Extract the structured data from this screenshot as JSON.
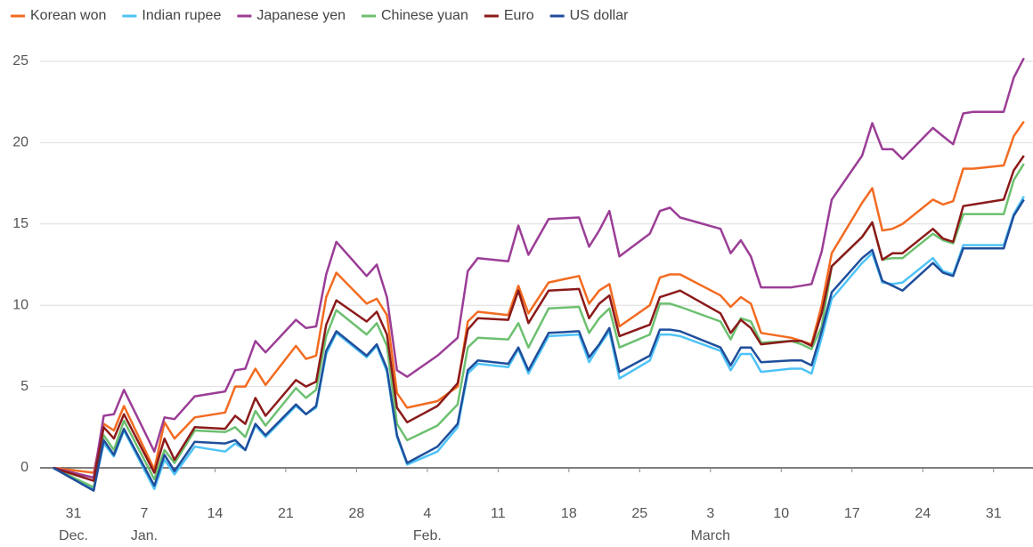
{
  "chart_data": {
    "type": "line",
    "x": [
      -2,
      2,
      3,
      4,
      5,
      8,
      9,
      10,
      12,
      15,
      16,
      17,
      18,
      19,
      22,
      23,
      24,
      25,
      26,
      29,
      30,
      31,
      32,
      33,
      36,
      38,
      39,
      40,
      43,
      44,
      45,
      47,
      50,
      51,
      52,
      53,
      54,
      57,
      58,
      59,
      60,
      64,
      65,
      66,
      67,
      68,
      71,
      72,
      73,
      74,
      75,
      78,
      79,
      80,
      81,
      82,
      85,
      86,
      87,
      88,
      89,
      92,
      93,
      94
    ],
    "series": [
      {
        "name": "Korean won",
        "color": "#f26b21",
        "values": [
          0,
          -0.3,
          2.7,
          2.3,
          3.8,
          -0.1,
          2.8,
          1.8,
          3.1,
          3.4,
          5.0,
          5.0,
          6.1,
          5.1,
          7.5,
          6.7,
          6.9,
          10.5,
          12.0,
          10.1,
          10.4,
          9.4,
          4.6,
          3.7,
          4.1,
          5.0,
          9.0,
          9.6,
          9.4,
          11.2,
          9.5,
          11.4,
          11.8,
          10.1,
          10.9,
          11.3,
          8.7,
          10.0,
          11.7,
          11.9,
          11.9,
          10.6,
          9.9,
          10.5,
          10.1,
          8.3,
          8.0,
          7.8,
          7.6,
          10.0,
          13.2,
          16.3,
          17.2,
          14.6,
          14.7,
          15.0,
          16.5,
          16.2,
          16.4,
          18.4,
          18.4,
          18.6,
          20.4,
          21.3
        ]
      },
      {
        "name": "Indian rupee",
        "color": "#4fc3f7",
        "values": [
          0,
          -1.3,
          1.5,
          0.7,
          2.3,
          -1.3,
          0.5,
          -0.4,
          1.3,
          1.0,
          1.5,
          1.1,
          2.6,
          1.9,
          3.8,
          3.3,
          3.7,
          7.0,
          8.3,
          6.8,
          7.5,
          5.9,
          1.9,
          0.2,
          1.0,
          2.5,
          5.8,
          6.4,
          6.2,
          7.3,
          5.8,
          8.1,
          8.2,
          6.5,
          7.5,
          8.4,
          5.5,
          6.6,
          8.2,
          8.2,
          8.1,
          7.2,
          6.0,
          7.0,
          7.0,
          5.9,
          6.1,
          6.1,
          5.8,
          8.0,
          10.4,
          12.6,
          13.2,
          11.4,
          11.3,
          11.4,
          12.9,
          12.1,
          11.9,
          13.7,
          13.7,
          13.7,
          15.6,
          16.7
        ]
      },
      {
        "name": "Japanese yen",
        "color": "#9b3d96",
        "values": [
          0,
          -0.6,
          3.2,
          3.3,
          4.8,
          1.0,
          3.1,
          3.0,
          4.4,
          4.7,
          6.0,
          6.1,
          7.8,
          7.1,
          9.1,
          8.6,
          8.7,
          11.9,
          13.9,
          11.8,
          12.5,
          10.5,
          6.0,
          5.6,
          6.9,
          8.0,
          12.1,
          12.9,
          12.7,
          14.9,
          13.1,
          15.3,
          15.4,
          13.6,
          14.6,
          15.8,
          13.0,
          14.4,
          15.8,
          16.0,
          15.4,
          14.7,
          13.2,
          14.0,
          13.0,
          11.1,
          11.1,
          11.2,
          11.3,
          13.3,
          16.5,
          19.2,
          21.2,
          19.6,
          19.6,
          19.0,
          20.9,
          20.4,
          19.9,
          21.8,
          21.9,
          21.9,
          24.0,
          25.2
        ]
      },
      {
        "name": "Chinese yuan",
        "color": "#6cc070",
        "values": [
          0,
          -1.2,
          2.0,
          1.1,
          2.9,
          -0.7,
          1.1,
          0.3,
          2.3,
          2.2,
          2.5,
          1.9,
          3.5,
          2.6,
          4.9,
          4.3,
          4.8,
          8.1,
          9.7,
          8.2,
          8.9,
          7.5,
          2.7,
          1.7,
          2.6,
          3.9,
          7.4,
          8.0,
          7.9,
          8.9,
          7.4,
          9.8,
          9.9,
          8.3,
          9.2,
          9.8,
          7.4,
          8.2,
          10.1,
          10.1,
          9.9,
          9.0,
          7.9,
          9.2,
          9.0,
          7.7,
          7.8,
          7.6,
          7.3,
          8.7,
          12.4,
          14.2,
          15.1,
          12.8,
          12.9,
          12.9,
          14.4,
          14.0,
          13.8,
          15.6,
          15.6,
          15.6,
          17.7,
          18.7
        ]
      },
      {
        "name": "Euro",
        "color": "#8b1a1a",
        "values": [
          0,
          -0.8,
          2.5,
          1.8,
          3.3,
          -0.3,
          1.8,
          0.5,
          2.5,
          2.4,
          3.2,
          2.7,
          4.3,
          3.2,
          5.4,
          5.0,
          5.3,
          8.8,
          10.3,
          9.0,
          9.6,
          8.2,
          3.7,
          2.8,
          3.8,
          5.2,
          8.5,
          9.2,
          9.1,
          10.9,
          8.9,
          10.9,
          11.0,
          9.2,
          10.1,
          10.6,
          8.1,
          8.8,
          10.5,
          10.7,
          10.9,
          9.5,
          8.3,
          9.1,
          8.6,
          7.6,
          7.8,
          7.8,
          7.5,
          9.5,
          12.4,
          14.2,
          15.1,
          12.8,
          13.2,
          13.2,
          14.7,
          14.1,
          13.9,
          16.1,
          16.2,
          16.5,
          18.3,
          19.2
        ]
      },
      {
        "name": "US dollar",
        "color": "#1f4e9c",
        "values": [
          0,
          -1.4,
          1.7,
          0.8,
          2.4,
          -1.1,
          0.8,
          -0.2,
          1.6,
          1.5,
          1.7,
          1.1,
          2.7,
          2.0,
          3.9,
          3.3,
          3.8,
          7.2,
          8.4,
          6.9,
          7.6,
          6.1,
          2.0,
          0.3,
          1.3,
          2.7,
          6.0,
          6.6,
          6.4,
          7.4,
          6.0,
          8.3,
          8.4,
          6.8,
          7.6,
          8.6,
          5.9,
          6.9,
          8.5,
          8.5,
          8.4,
          7.4,
          6.3,
          7.4,
          7.4,
          6.5,
          6.6,
          6.6,
          6.3,
          8.4,
          10.8,
          12.9,
          13.4,
          11.5,
          11.2,
          10.9,
          12.6,
          12.0,
          11.8,
          13.5,
          13.5,
          13.5,
          15.5,
          16.5
        ]
      }
    ],
    "xlim": [
      -3.3,
      94.9
    ],
    "xticks": [
      {
        "value": 0,
        "label": "31"
      },
      {
        "value": 7,
        "label": "7"
      },
      {
        "value": 14,
        "label": "14"
      },
      {
        "value": 21,
        "label": "21"
      },
      {
        "value": 28,
        "label": "28"
      },
      {
        "value": 35,
        "label": "4"
      },
      {
        "value": 42,
        "label": "11"
      },
      {
        "value": 49,
        "label": "18"
      },
      {
        "value": 56,
        "label": "25"
      },
      {
        "value": 63,
        "label": "3"
      },
      {
        "value": 70,
        "label": "10"
      },
      {
        "value": 77,
        "label": "17"
      },
      {
        "value": 84,
        "label": "24"
      },
      {
        "value": 91,
        "label": "31"
      }
    ],
    "xmonths": [
      {
        "value": 0,
        "label": "Dec."
      },
      {
        "value": 7,
        "label": "Jan."
      },
      {
        "value": 35,
        "label": "Feb."
      },
      {
        "value": 63,
        "label": "March"
      }
    ],
    "ylim": [
      -2.5,
      26
    ],
    "yticks": [
      0,
      5,
      10,
      15,
      20,
      25
    ],
    "grid": true
  }
}
